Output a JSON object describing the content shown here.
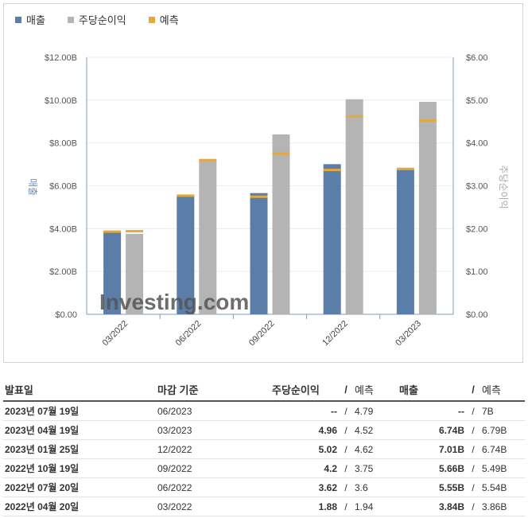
{
  "legend": [
    {
      "label": "매출",
      "color": "#5b7ea8"
    },
    {
      "label": "주당순이익",
      "color": "#b4b4b4"
    },
    {
      "label": "예측",
      "color": "#e5a83c"
    }
  ],
  "chart_data": {
    "type": "bar",
    "categories": [
      "03/2022",
      "06/2022",
      "09/2022",
      "12/2022",
      "03/2023"
    ],
    "series": [
      {
        "name": "매출",
        "axis": "left",
        "values": [
          3.84,
          5.55,
          5.66,
          7.01,
          6.74
        ],
        "forecast": [
          3.86,
          5.54,
          5.49,
          6.74,
          6.79
        ]
      },
      {
        "name": "주당순이익",
        "axis": "right",
        "values": [
          1.88,
          3.62,
          4.2,
          5.02,
          4.96
        ],
        "forecast": [
          1.94,
          3.6,
          3.75,
          4.62,
          4.52
        ]
      }
    ],
    "ylabel_left": "매출",
    "ylabel_right": "주당순이익",
    "ylim_left": [
      0,
      12
    ],
    "ylim_right": [
      0,
      6
    ],
    "yticks_left": [
      "$0.00",
      "$2.00B",
      "$4.00B",
      "$6.00B",
      "$8.00B",
      "$10.00B",
      "$12.00B"
    ],
    "yticks_right": [
      "$0.00",
      "$1.00",
      "$2.00",
      "$3.00",
      "$4.00",
      "$5.00",
      "$6.00"
    ],
    "grid": true,
    "watermark": "Investing.com"
  },
  "table": {
    "headers": {
      "date": "발표일",
      "period": "마감 기준",
      "eps": "주당순이익",
      "sep": "/",
      "eps_forecast": "예측",
      "revenue": "매출",
      "revenue_forecast": "예측"
    },
    "rows": [
      {
        "date": "2023년 07월 19일",
        "period": "06/2023",
        "eps": "--",
        "eps_color": "plain",
        "eps_forecast": "4.79",
        "revenue": "--",
        "revenue_color": "plain",
        "revenue_forecast": "7B"
      },
      {
        "date": "2023년 04월 19일",
        "period": "03/2023",
        "eps": "4.96",
        "eps_color": "red",
        "eps_forecast": "4.52",
        "revenue": "6.74B",
        "revenue_color": "blue",
        "revenue_forecast": "6.79B"
      },
      {
        "date": "2023년 01월 25일",
        "period": "12/2022",
        "eps": "5.02",
        "eps_color": "red",
        "eps_forecast": "4.62",
        "revenue": "7.01B",
        "revenue_color": "red",
        "revenue_forecast": "6.74B"
      },
      {
        "date": "2022년 10월 19일",
        "period": "09/2022",
        "eps": "4.2",
        "eps_color": "red",
        "eps_forecast": "3.75",
        "revenue": "5.66B",
        "revenue_color": "red",
        "revenue_forecast": "5.49B"
      },
      {
        "date": "2022년 07월 20일",
        "period": "06/2022",
        "eps": "3.62",
        "eps_color": "red",
        "eps_forecast": "3.6",
        "revenue": "5.55B",
        "revenue_color": "red",
        "revenue_forecast": "5.54B"
      },
      {
        "date": "2022년 04월 20일",
        "period": "03/2022",
        "eps": "1.88",
        "eps_color": "blue",
        "eps_forecast": "1.94",
        "revenue": "3.84B",
        "revenue_color": "blue",
        "revenue_forecast": "3.86B"
      }
    ]
  }
}
